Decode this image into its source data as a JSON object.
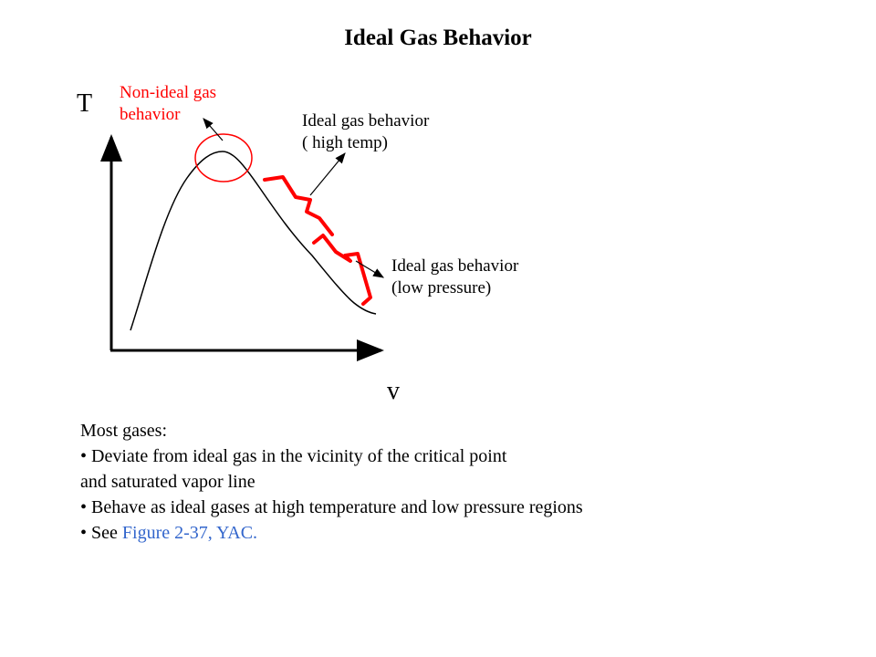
{
  "title": "Ideal Gas Behavior",
  "diagram": {
    "y_axis_label": "T",
    "x_axis_label": "v",
    "labels": {
      "non_ideal": [
        "Non-ideal gas",
        "behavior"
      ],
      "high_temp": [
        "Ideal gas behavior",
        "( high temp)"
      ],
      "low_pressure": [
        "Ideal gas behavior",
        "(low pressure)"
      ]
    },
    "colors": {
      "highlight": "#ff0000",
      "curve": "#000000"
    }
  },
  "notes": {
    "heading": "Most gases:",
    "bullet_1_line_1": "• Deviate from ideal gas in the vicinity of the critical point",
    "bullet_1_line_2": "and saturated vapor line",
    "bullet_2": "• Behave as ideal gases at high temperature and low pressure regions",
    "bullet_3_prefix": "• See ",
    "bullet_3_link": "Figure 2-37, YAC."
  }
}
